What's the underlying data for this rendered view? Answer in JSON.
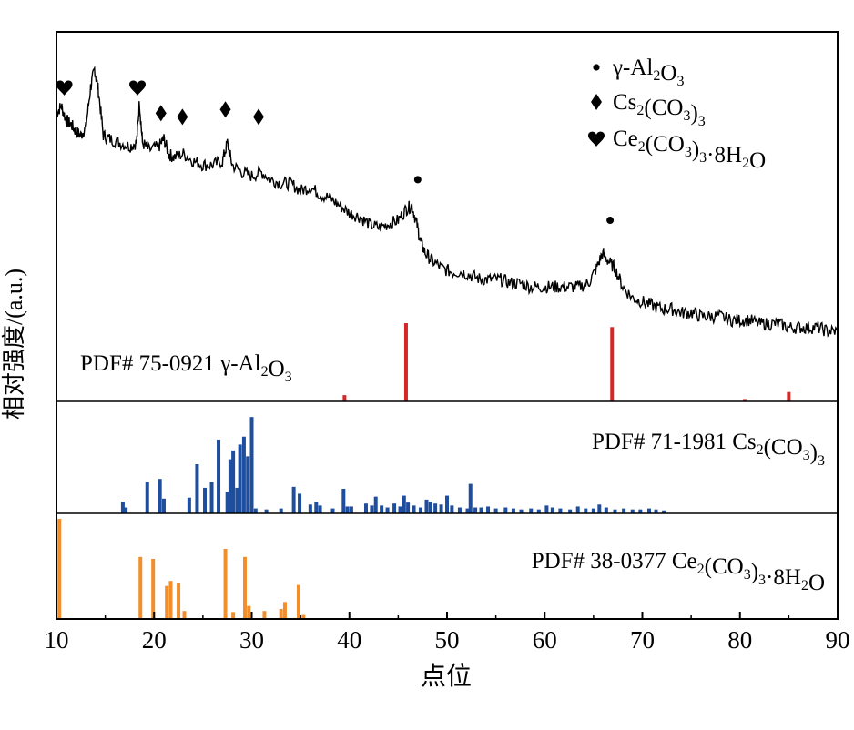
{
  "chart_data": {
    "type": "bar",
    "title": "",
    "xlabel": "点位",
    "ylabel": "相对强度/(a.u.)",
    "xlim": [
      10,
      90
    ],
    "xticks": [
      10,
      20,
      30,
      40,
      50,
      60,
      70,
      80,
      90
    ],
    "grid": false,
    "legend": {
      "placement": "top-right",
      "entries": [
        {
          "symbol": "dot",
          "label": "γ-Al",
          "sub1": "2",
          "mid": "O",
          "sub2": "3"
        },
        {
          "symbol": "diamond",
          "label": "Cs",
          "sub1": "2",
          "mid": "(CO",
          "sub2": "3",
          "tail": ")",
          "sub3": "3"
        },
        {
          "symbol": "heart",
          "label": "Ce",
          "sub1": "2",
          "mid": "(CO",
          "sub2": "3",
          "tail": ")",
          "sub3": "3",
          "tail2": "·8H",
          "sub4": "2",
          "tail3": "O"
        }
      ]
    },
    "xrd_pattern": {
      "name": "sample",
      "color": "#000000",
      "points": [
        [
          10,
          0.78
        ],
        [
          10.5,
          0.8
        ],
        [
          11,
          0.76
        ],
        [
          11.5,
          0.75
        ],
        [
          12,
          0.73
        ],
        [
          12.5,
          0.72
        ],
        [
          13,
          0.74
        ],
        [
          13.5,
          0.85
        ],
        [
          13.9,
          0.9
        ],
        [
          14.3,
          0.84
        ],
        [
          14.8,
          0.72
        ],
        [
          15.5,
          0.71
        ],
        [
          16.5,
          0.7
        ],
        [
          17.5,
          0.69
        ],
        [
          18.2,
          0.7
        ],
        [
          18.5,
          0.81
        ],
        [
          18.8,
          0.7
        ],
        [
          19.5,
          0.68
        ],
        [
          20.5,
          0.69
        ],
        [
          21,
          0.71
        ],
        [
          21.5,
          0.67
        ],
        [
          22,
          0.66
        ],
        [
          23,
          0.67
        ],
        [
          24,
          0.65
        ],
        [
          25,
          0.64
        ],
        [
          26,
          0.64
        ],
        [
          27,
          0.65
        ],
        [
          27.5,
          0.7
        ],
        [
          28,
          0.64
        ],
        [
          29,
          0.62
        ],
        [
          30,
          0.61
        ],
        [
          31,
          0.62
        ],
        [
          32,
          0.6
        ],
        [
          33,
          0.59
        ],
        [
          34,
          0.59
        ],
        [
          35,
          0.57
        ],
        [
          36,
          0.58
        ],
        [
          37,
          0.56
        ],
        [
          38,
          0.55
        ],
        [
          39,
          0.53
        ],
        [
          40,
          0.51
        ],
        [
          41,
          0.5
        ],
        [
          42,
          0.48
        ],
        [
          43,
          0.47
        ],
        [
          44,
          0.48
        ],
        [
          45,
          0.49
        ],
        [
          45.8,
          0.52
        ],
        [
          46.4,
          0.53
        ],
        [
          46.9,
          0.48
        ],
        [
          47.3,
          0.43
        ],
        [
          47.8,
          0.4
        ],
        [
          48.5,
          0.38
        ],
        [
          49.5,
          0.36
        ],
        [
          50.5,
          0.35
        ],
        [
          51.5,
          0.35
        ],
        [
          52.5,
          0.34
        ],
        [
          53.5,
          0.33
        ],
        [
          54.5,
          0.33
        ],
        [
          55.5,
          0.33
        ],
        [
          56.5,
          0.32
        ],
        [
          57.5,
          0.32
        ],
        [
          58.5,
          0.31
        ],
        [
          59.5,
          0.31
        ],
        [
          60.5,
          0.31
        ],
        [
          61.5,
          0.31
        ],
        [
          62.5,
          0.31
        ],
        [
          63.5,
          0.31
        ],
        [
          64.5,
          0.32
        ],
        [
          65.3,
          0.36
        ],
        [
          65.9,
          0.4
        ],
        [
          66.5,
          0.38
        ],
        [
          67.2,
          0.36
        ],
        [
          68,
          0.31
        ],
        [
          69,
          0.28
        ],
        [
          70,
          0.27
        ],
        [
          71,
          0.26
        ],
        [
          72,
          0.25
        ],
        [
          73,
          0.25
        ],
        [
          74,
          0.24
        ],
        [
          75,
          0.24
        ],
        [
          76,
          0.23
        ],
        [
          77,
          0.23
        ],
        [
          78,
          0.23
        ],
        [
          79,
          0.22
        ],
        [
          80,
          0.22
        ],
        [
          81,
          0.22
        ],
        [
          82,
          0.21
        ],
        [
          83,
          0.21
        ],
        [
          84,
          0.21
        ],
        [
          85,
          0.2
        ],
        [
          86,
          0.2
        ],
        [
          87,
          0.2
        ],
        [
          88,
          0.2
        ],
        [
          89,
          0.19
        ],
        [
          90,
          0.19
        ]
      ]
    },
    "markers": [
      {
        "symbol": "heart",
        "x": 10.8,
        "y": 0.85
      },
      {
        "symbol": "heart",
        "x": 18.3,
        "y": 0.85
      },
      {
        "symbol": "diamond",
        "x": 20.7,
        "y": 0.78
      },
      {
        "symbol": "diamond",
        "x": 22.9,
        "y": 0.77
      },
      {
        "symbol": "diamond",
        "x": 27.3,
        "y": 0.79
      },
      {
        "symbol": "diamond",
        "x": 30.7,
        "y": 0.77
      },
      {
        "symbol": "dot",
        "x": 47.0,
        "y": 0.6
      },
      {
        "symbol": "dot",
        "x": 66.7,
        "y": 0.49
      }
    ],
    "reference_panels": [
      {
        "label": "PDF# 75-0921 ",
        "formula": {
          "a": "γ-Al",
          "s1": "2",
          "b": "O",
          "s2": "3"
        },
        "label_placement": "left",
        "color": "#d62728",
        "peaks": [
          [
            39.5,
            0.08
          ],
          [
            45.8,
            1.0
          ],
          [
            66.9,
            0.95
          ],
          [
            80.5,
            0.03
          ],
          [
            85.0,
            0.12
          ]
        ]
      },
      {
        "label": "PDF# 71-1981 ",
        "formula": {
          "a": "Cs",
          "s1": "2",
          "b": "(CO",
          "s2": "3",
          "c": ")",
          "s3": "3"
        },
        "label_placement": "right",
        "color": "#1f4e9e",
        "peaks": [
          [
            16.8,
            0.12
          ],
          [
            17.1,
            0.06
          ],
          [
            19.3,
            0.32
          ],
          [
            20.6,
            0.35
          ],
          [
            21.0,
            0.15
          ],
          [
            23.6,
            0.16
          ],
          [
            24.4,
            0.5
          ],
          [
            25.2,
            0.26
          ],
          [
            25.9,
            0.32
          ],
          [
            26.6,
            0.75
          ],
          [
            27.5,
            0.22
          ],
          [
            27.8,
            0.55
          ],
          [
            28.1,
            0.64
          ],
          [
            28.5,
            0.26
          ],
          [
            28.8,
            0.7
          ],
          [
            29.2,
            0.78
          ],
          [
            29.6,
            0.58
          ],
          [
            30.0,
            0.98
          ],
          [
            30.4,
            0.05
          ],
          [
            31.5,
            0.04
          ],
          [
            33.0,
            0.05
          ],
          [
            34.3,
            0.27
          ],
          [
            34.9,
            0.2
          ],
          [
            36.0,
            0.09
          ],
          [
            36.6,
            0.12
          ],
          [
            37.0,
            0.08
          ],
          [
            38.3,
            0.05
          ],
          [
            39.4,
            0.25
          ],
          [
            39.8,
            0.07
          ],
          [
            40.2,
            0.07
          ],
          [
            41.7,
            0.1
          ],
          [
            42.3,
            0.08
          ],
          [
            42.7,
            0.17
          ],
          [
            43.3,
            0.08
          ],
          [
            43.9,
            0.06
          ],
          [
            44.6,
            0.1
          ],
          [
            45.2,
            0.07
          ],
          [
            45.6,
            0.18
          ],
          [
            46.0,
            0.11
          ],
          [
            46.6,
            0.08
          ],
          [
            47.3,
            0.06
          ],
          [
            47.9,
            0.14
          ],
          [
            48.3,
            0.12
          ],
          [
            48.8,
            0.1
          ],
          [
            49.4,
            0.09
          ],
          [
            50.0,
            0.18
          ],
          [
            50.5,
            0.08
          ],
          [
            51.3,
            0.06
          ],
          [
            52.1,
            0.05
          ],
          [
            52.4,
            0.3
          ],
          [
            52.9,
            0.06
          ],
          [
            53.5,
            0.06
          ],
          [
            54.2,
            0.07
          ],
          [
            55.0,
            0.05
          ],
          [
            56.0,
            0.06
          ],
          [
            56.8,
            0.05
          ],
          [
            57.6,
            0.04
          ],
          [
            58.6,
            0.05
          ],
          [
            59.4,
            0.04
          ],
          [
            60.2,
            0.08
          ],
          [
            60.8,
            0.06
          ],
          [
            61.6,
            0.05
          ],
          [
            62.6,
            0.04
          ],
          [
            63.4,
            0.07
          ],
          [
            64.2,
            0.05
          ],
          [
            65.0,
            0.05
          ],
          [
            65.6,
            0.09
          ],
          [
            66.3,
            0.06
          ],
          [
            67.2,
            0.04
          ],
          [
            68.1,
            0.05
          ],
          [
            69.0,
            0.04
          ],
          [
            69.8,
            0.04
          ],
          [
            70.7,
            0.05
          ],
          [
            71.4,
            0.04
          ],
          [
            72.2,
            0.03
          ]
        ]
      },
      {
        "label": "PDF# 38-0377 ",
        "formula": {
          "a": "Ce",
          "s1": "2",
          "b": "(CO",
          "s2": "3",
          "c": ")",
          "s3": "3",
          "d": "·8H",
          "s4": "2",
          "e": "O"
        },
        "label_placement": "right",
        "color": "#f28e2b",
        "peaks": [
          [
            10.3,
            1.0
          ],
          [
            18.6,
            0.62
          ],
          [
            19.9,
            0.6
          ],
          [
            21.3,
            0.33
          ],
          [
            21.7,
            0.38
          ],
          [
            22.5,
            0.36
          ],
          [
            23.1,
            0.08
          ],
          [
            27.3,
            0.7
          ],
          [
            28.1,
            0.07
          ],
          [
            29.3,
            0.62
          ],
          [
            29.7,
            0.13
          ],
          [
            31.3,
            0.08
          ],
          [
            33.0,
            0.1
          ],
          [
            33.4,
            0.17
          ],
          [
            34.8,
            0.34
          ],
          [
            35.3,
            0.04
          ]
        ]
      }
    ]
  }
}
